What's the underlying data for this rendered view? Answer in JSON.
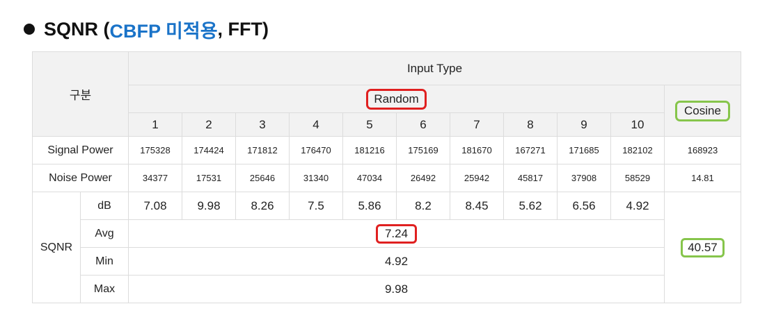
{
  "heading": {
    "prefix": "SQNR (",
    "accent": "CBFP 미적용",
    "suffix": ", FFT)"
  },
  "colors": {
    "accent": "#1a73c8",
    "highlight_red": "#e02020",
    "highlight_green": "#86c54b",
    "header_bg": "#f2f2f2"
  },
  "table": {
    "corner_label": "구분",
    "input_type_label": "Input Type",
    "random_label": "Random",
    "cosine_label": "Cosine",
    "columns": [
      "1",
      "2",
      "3",
      "4",
      "5",
      "6",
      "7",
      "8",
      "9",
      "10"
    ],
    "signal_power": {
      "label": "Signal Power",
      "random": [
        "175328",
        "174424",
        "171812",
        "176470",
        "181216",
        "175169",
        "181670",
        "167271",
        "171685",
        "182102"
      ],
      "cosine": "168923"
    },
    "noise_power": {
      "label": "Noise Power",
      "random": [
        "34377",
        "17531",
        "25646",
        "31340",
        "47034",
        "26492",
        "25942",
        "45817",
        "37908",
        "58529"
      ],
      "cosine": "14.81"
    },
    "sqnr": {
      "label": "SQNR",
      "db_label": "dB",
      "db": [
        "7.08",
        "9.98",
        "8.26",
        "7.5",
        "5.86",
        "8.2",
        "8.45",
        "5.62",
        "6.56",
        "4.92"
      ],
      "avg_label": "Avg",
      "avg": "7.24",
      "min_label": "Min",
      "min": "4.92",
      "max_label": "Max",
      "max": "9.98",
      "cosine": "40.57"
    }
  }
}
